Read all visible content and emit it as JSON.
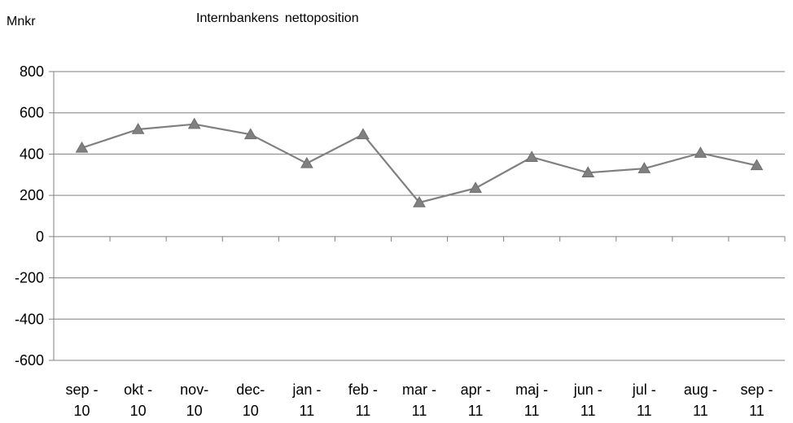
{
  "chart_data": {
    "type": "line",
    "title": "Internbankens  nettoposition",
    "ylabel": "Mnkr",
    "xlabel": "",
    "ylim": [
      -600,
      800
    ],
    "yticks": [
      800,
      600,
      400,
      200,
      0,
      -200,
      -400,
      -600
    ],
    "categories": [
      [
        "sep -",
        "10"
      ],
      [
        "okt -",
        "10"
      ],
      [
        "nov-",
        "10"
      ],
      [
        "dec-",
        "10"
      ],
      [
        "jan -",
        "11"
      ],
      [
        "feb -",
        "11"
      ],
      [
        "mar -",
        "11"
      ],
      [
        "apr -",
        "11"
      ],
      [
        "maj -",
        "11"
      ],
      [
        "jun -",
        "11"
      ],
      [
        "jul  -",
        "11"
      ],
      [
        "aug -",
        "11"
      ],
      [
        "sep -",
        "11"
      ]
    ],
    "series": [
      {
        "values": [
          430,
          520,
          545,
          495,
          355,
          495,
          165,
          235,
          385,
          310,
          330,
          405,
          345
        ]
      }
    ],
    "grid": true,
    "marker": "triangle",
    "line_color": "#808080",
    "marker_color": "#808080",
    "grid_color": "#808080"
  }
}
